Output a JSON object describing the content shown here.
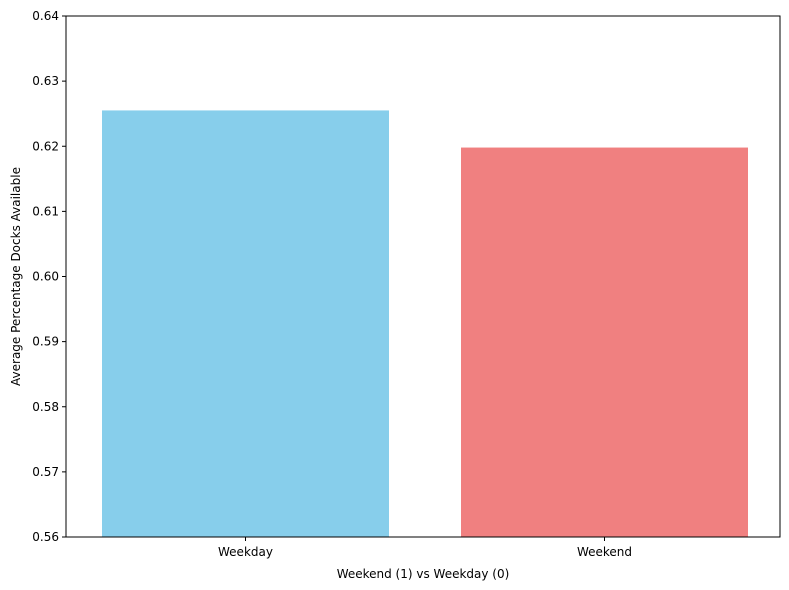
{
  "chart_data": {
    "type": "bar",
    "title": "",
    "xlabel": "Weekend (1) vs Weekday (0)",
    "ylabel": "Average Percentage Docks Available",
    "categories": [
      "Weekday",
      "Weekend"
    ],
    "values": [
      0.6255,
      0.6198
    ],
    "colors": [
      "#87CEEB",
      "#F08080"
    ],
    "ylim": [
      0.56,
      0.64
    ],
    "yticks": [
      "0.56",
      "0.57",
      "0.58",
      "0.59",
      "0.60",
      "0.61",
      "0.62",
      "0.63",
      "0.64"
    ],
    "grid": false,
    "legend": "none"
  }
}
